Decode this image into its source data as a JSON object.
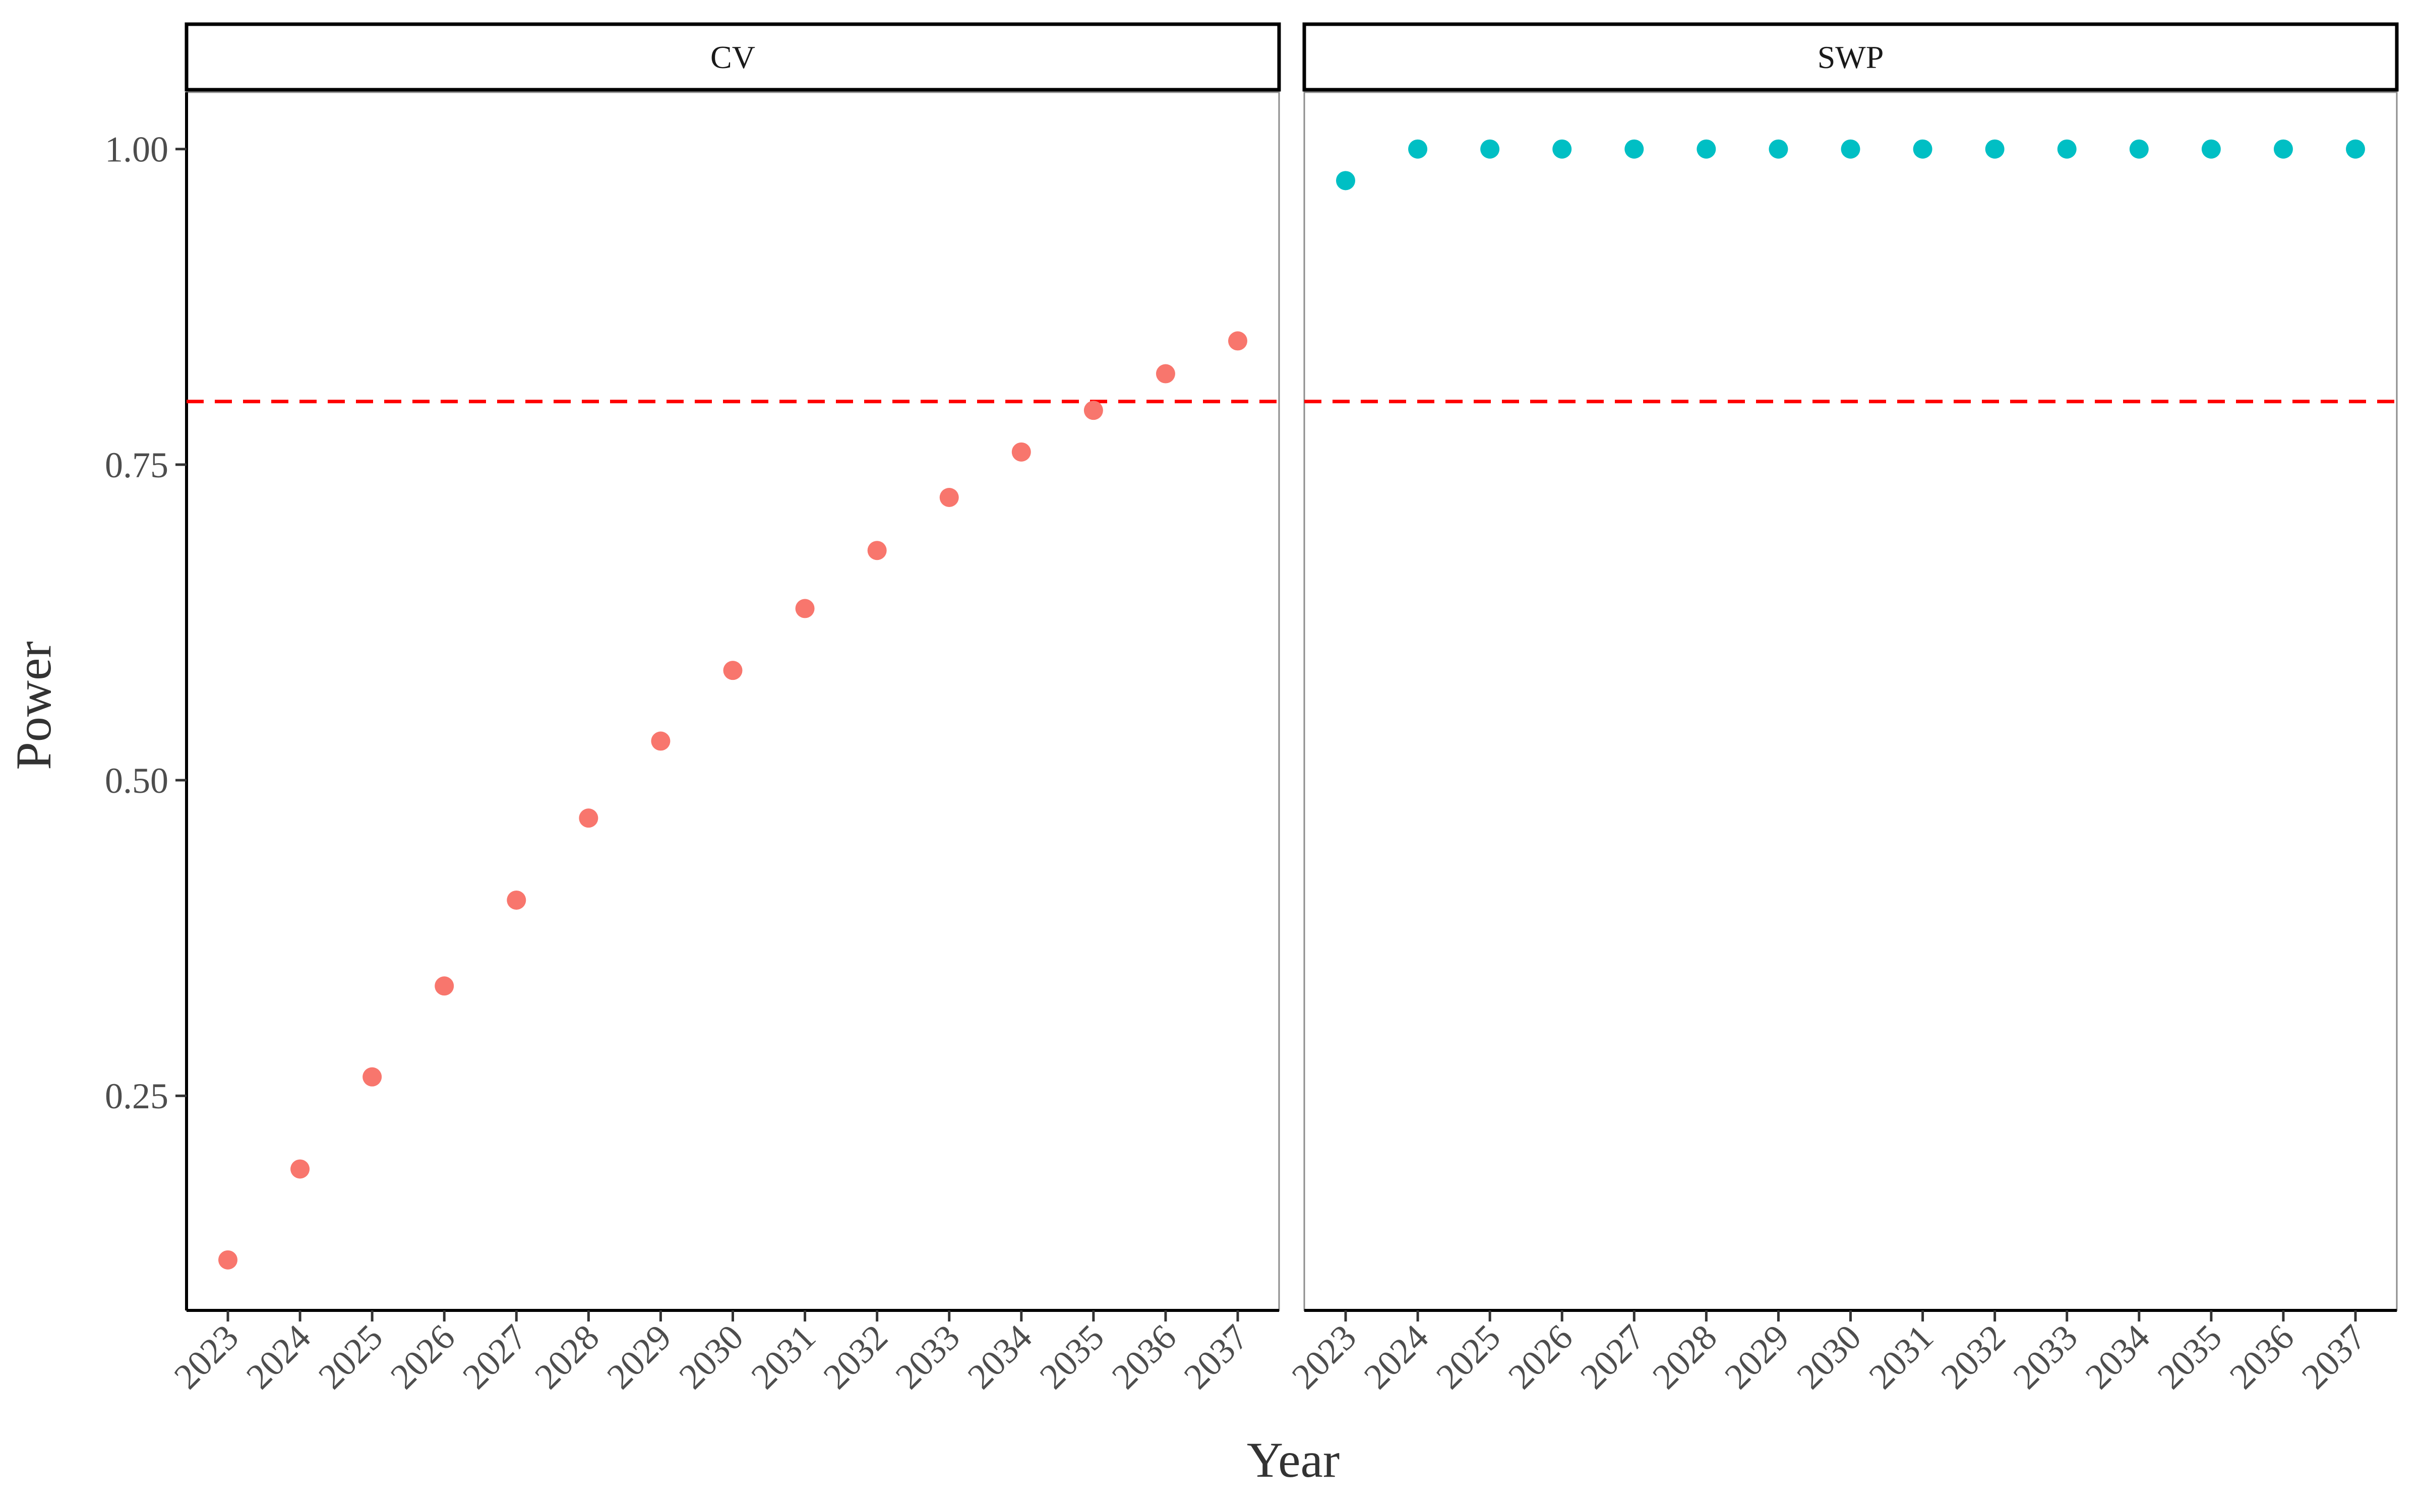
{
  "chart_data": {
    "type": "scatter",
    "xlabel": "Year",
    "ylabel": "Power",
    "ylim": [
      0.08,
      1.045
    ],
    "yticks": [
      "0.25",
      "0.50",
      "0.75",
      "1.00"
    ],
    "categories": [
      "2023",
      "2024",
      "2025",
      "2026",
      "2027",
      "2028",
      "2029",
      "2030",
      "2031",
      "2032",
      "2033",
      "2034",
      "2035",
      "2036",
      "2037"
    ],
    "reference_line": {
      "y": 0.8,
      "color": "#ff0000",
      "style": "dashed"
    },
    "grid": false,
    "legend": "none",
    "panels": [
      {
        "name": "CV",
        "color": "#f8766d",
        "values": [
          0.12,
          0.192,
          0.265,
          0.337,
          0.405,
          0.47,
          0.531,
          0.587,
          0.636,
          0.682,
          0.724,
          0.76,
          0.793,
          0.822,
          0.848
        ]
      },
      {
        "name": "SWP",
        "color": "#00bfc4",
        "values": [
          0.975,
          1.0,
          1.0,
          1.0,
          1.0,
          1.0,
          1.0,
          1.0,
          1.0,
          1.0,
          1.0,
          1.0,
          1.0,
          1.0,
          1.0
        ]
      }
    ]
  }
}
